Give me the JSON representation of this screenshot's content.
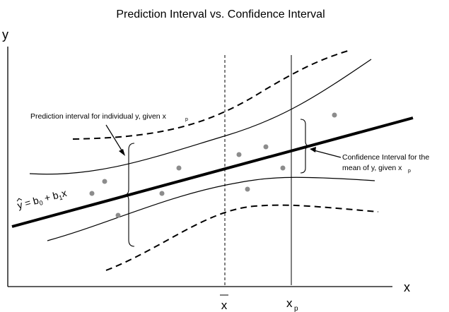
{
  "title": "Prediction Interval vs. Confidence Interval",
  "axes": {
    "y_label": "y",
    "x_label": "x"
  },
  "markers": {
    "xbar": "x",
    "xp_main": "x",
    "xp_sub": "p"
  },
  "labels": {
    "prediction_interval": {
      "text": "Prediction interval for individual y, given x",
      "sub": "p"
    },
    "confidence_interval": {
      "line1": "Confidence Interval for the",
      "line2": "mean of y, given x",
      "sub": "p"
    },
    "regression_equation": {
      "yhat": "y",
      "eq": " = b",
      "b0_sub": "0",
      "plus": " + b",
      "b1_sub": "1",
      "x": "x"
    }
  },
  "colors": {
    "points": "#8c8c8c",
    "lines": "#000000"
  },
  "data_point_count": 10
}
